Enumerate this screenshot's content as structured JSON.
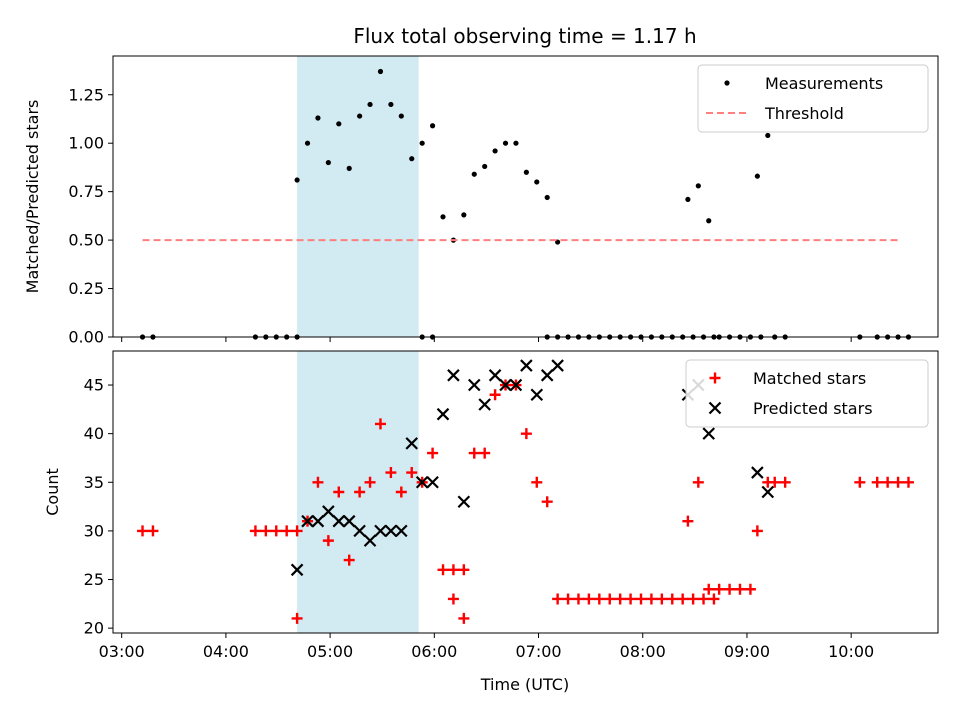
{
  "chart_data": [
    {
      "type": "scatter",
      "title": "Flux total observing time = 1.17 h",
      "ylabel": "Matched/Predicted stars",
      "xlabel": "",
      "xlim": [
        "02:55",
        "10:50"
      ],
      "ylim": [
        0,
        1.45
      ],
      "yticks": [
        "0.00",
        "0.25",
        "0.50",
        "0.75",
        "1.00",
        "1.25"
      ],
      "grid": false,
      "legend_position": "top-right",
      "shaded_interval": {
        "start": "04:41",
        "end": "05:51",
        "color": "#add8e6"
      },
      "series": [
        {
          "name": "Measurements",
          "marker": "dot",
          "color": "#000000",
          "points": [
            [
              "03:12",
              0.0
            ],
            [
              "03:18",
              0.0
            ],
            [
              "04:17",
              0.0
            ],
            [
              "04:23",
              0.0
            ],
            [
              "04:29",
              0.0
            ],
            [
              "04:35",
              0.0
            ],
            [
              "04:41",
              0.0
            ],
            [
              "04:41",
              0.81
            ],
            [
              "04:47",
              1.0
            ],
            [
              "04:53",
              1.13
            ],
            [
              "04:59",
              0.9
            ],
            [
              "05:05",
              1.1
            ],
            [
              "05:11",
              0.87
            ],
            [
              "05:17",
              1.14
            ],
            [
              "05:23",
              1.2
            ],
            [
              "05:29",
              1.37
            ],
            [
              "05:35",
              1.2
            ],
            [
              "05:41",
              1.14
            ],
            [
              "05:47",
              0.92
            ],
            [
              "05:53",
              1.0
            ],
            [
              "05:59",
              1.09
            ],
            [
              "06:05",
              0.62
            ],
            [
              "05:53",
              0.0
            ],
            [
              "05:59",
              0.0
            ],
            [
              "06:11",
              0.5
            ],
            [
              "06:17",
              0.63
            ],
            [
              "06:23",
              0.84
            ],
            [
              "06:29",
              0.88
            ],
            [
              "06:35",
              0.96
            ],
            [
              "06:41",
              1.0
            ],
            [
              "06:47",
              1.0
            ],
            [
              "06:53",
              0.85
            ],
            [
              "06:59",
              0.8
            ],
            [
              "07:05",
              0.72
            ],
            [
              "07:11",
              0.49
            ],
            [
              "07:05",
              0.0
            ],
            [
              "07:11",
              0.0
            ],
            [
              "07:17",
              0.0
            ],
            [
              "07:23",
              0.0
            ],
            [
              "07:29",
              0.0
            ],
            [
              "07:35",
              0.0
            ],
            [
              "07:41",
              0.0
            ],
            [
              "07:47",
              0.0
            ],
            [
              "07:53",
              0.0
            ],
            [
              "07:59",
              0.0
            ],
            [
              "08:05",
              0.0
            ],
            [
              "08:11",
              0.0
            ],
            [
              "08:17",
              0.0
            ],
            [
              "08:23",
              0.0
            ],
            [
              "08:29",
              0.0
            ],
            [
              "08:35",
              0.0
            ],
            [
              "08:41",
              0.0
            ],
            [
              "08:26",
              0.71
            ],
            [
              "08:32",
              0.78
            ],
            [
              "08:38",
              0.6
            ],
            [
              "08:44",
              0.0
            ],
            [
              "08:50",
              0.0
            ],
            [
              "08:56",
              0.0
            ],
            [
              "09:02",
              0.0
            ],
            [
              "09:08",
              0.0
            ],
            [
              "09:06",
              0.83
            ],
            [
              "09:12",
              1.04
            ],
            [
              "09:16",
              0.0
            ],
            [
              "09:22",
              0.0
            ],
            [
              "10:05",
              0.0
            ],
            [
              "10:15",
              0.0
            ],
            [
              "10:21",
              0.0
            ],
            [
              "10:27",
              0.0
            ],
            [
              "10:33",
              0.0
            ]
          ]
        },
        {
          "name": "Threshold",
          "marker": "dashed-line",
          "color": "#ff7f7f",
          "points": [
            [
              "03:12",
              0.5
            ],
            [
              "10:27",
              0.5
            ]
          ]
        }
      ]
    },
    {
      "type": "scatter",
      "title": "",
      "ylabel": "Count",
      "xlabel": "Time (UTC)",
      "xlim": [
        "02:55",
        "10:50"
      ],
      "xticks": [
        "03:00",
        "04:00",
        "05:00",
        "06:00",
        "07:00",
        "08:00",
        "09:00",
        "10:00"
      ],
      "ylim": [
        19.5,
        48.5
      ],
      "yticks": [
        "20",
        "25",
        "30",
        "35",
        "40",
        "45"
      ],
      "grid": false,
      "legend_position": "top-right",
      "shaded_interval": {
        "start": "04:41",
        "end": "05:51",
        "color": "#add8e6"
      },
      "series": [
        {
          "name": "Matched stars",
          "marker": "plus",
          "color": "#ff0000",
          "points": [
            [
              "03:12",
              30
            ],
            [
              "03:18",
              30
            ],
            [
              "04:17",
              30
            ],
            [
              "04:23",
              30
            ],
            [
              "04:29",
              30
            ],
            [
              "04:35",
              30
            ],
            [
              "04:41",
              30
            ],
            [
              "04:41",
              21
            ],
            [
              "04:47",
              31
            ],
            [
              "04:53",
              35
            ],
            [
              "04:59",
              29
            ],
            [
              "05:05",
              34
            ],
            [
              "05:11",
              27
            ],
            [
              "05:17",
              34
            ],
            [
              "05:23",
              35
            ],
            [
              "05:29",
              41
            ],
            [
              "05:35",
              36
            ],
            [
              "05:41",
              34
            ],
            [
              "05:47",
              36
            ],
            [
              "05:53",
              35
            ],
            [
              "05:59",
              38
            ],
            [
              "06:05",
              26
            ],
            [
              "06:11",
              26
            ],
            [
              "06:17",
              26
            ],
            [
              "06:11",
              23
            ],
            [
              "06:17",
              21
            ],
            [
              "06:23",
              38
            ],
            [
              "06:29",
              38
            ],
            [
              "06:35",
              44
            ],
            [
              "06:41",
              45
            ],
            [
              "06:47",
              45
            ],
            [
              "06:53",
              40
            ],
            [
              "06:59",
              35
            ],
            [
              "07:05",
              33
            ],
            [
              "07:11",
              23
            ],
            [
              "07:17",
              23
            ],
            [
              "07:23",
              23
            ],
            [
              "07:29",
              23
            ],
            [
              "07:35",
              23
            ],
            [
              "07:41",
              23
            ],
            [
              "07:47",
              23
            ],
            [
              "07:53",
              23
            ],
            [
              "07:59",
              23
            ],
            [
              "08:05",
              23
            ],
            [
              "08:11",
              23
            ],
            [
              "08:17",
              23
            ],
            [
              "08:23",
              23
            ],
            [
              "08:29",
              23
            ],
            [
              "08:35",
              23
            ],
            [
              "08:41",
              23
            ],
            [
              "08:26",
              31
            ],
            [
              "08:32",
              35
            ],
            [
              "08:38",
              24
            ],
            [
              "08:44",
              24
            ],
            [
              "08:50",
              24
            ],
            [
              "08:56",
              24
            ],
            [
              "09:02",
              24
            ],
            [
              "09:06",
              30
            ],
            [
              "09:12",
              35
            ],
            [
              "09:16",
              35
            ],
            [
              "09:22",
              35
            ],
            [
              "10:05",
              35
            ],
            [
              "10:15",
              35
            ],
            [
              "10:21",
              35
            ],
            [
              "10:27",
              35
            ],
            [
              "10:33",
              35
            ]
          ]
        },
        {
          "name": "Predicted stars",
          "marker": "x",
          "color": "#000000",
          "points": [
            [
              "04:41",
              26
            ],
            [
              "04:47",
              31
            ],
            [
              "04:53",
              31
            ],
            [
              "04:59",
              32
            ],
            [
              "05:05",
              31
            ],
            [
              "05:11",
              31
            ],
            [
              "05:17",
              30
            ],
            [
              "05:23",
              29
            ],
            [
              "05:29",
              30
            ],
            [
              "05:35",
              30
            ],
            [
              "05:41",
              30
            ],
            [
              "05:47",
              39
            ],
            [
              "05:53",
              35
            ],
            [
              "05:59",
              35
            ],
            [
              "06:05",
              42
            ],
            [
              "06:11",
              46
            ],
            [
              "06:17",
              33
            ],
            [
              "06:23",
              45
            ],
            [
              "06:29",
              43
            ],
            [
              "06:35",
              46
            ],
            [
              "06:41",
              45
            ],
            [
              "06:47",
              45
            ],
            [
              "06:53",
              47
            ],
            [
              "06:59",
              44
            ],
            [
              "07:05",
              46
            ],
            [
              "07:11",
              47
            ],
            [
              "08:26",
              44
            ],
            [
              "08:32",
              45
            ],
            [
              "08:38",
              40
            ],
            [
              "09:06",
              36
            ],
            [
              "09:12",
              34
            ]
          ]
        }
      ]
    }
  ]
}
